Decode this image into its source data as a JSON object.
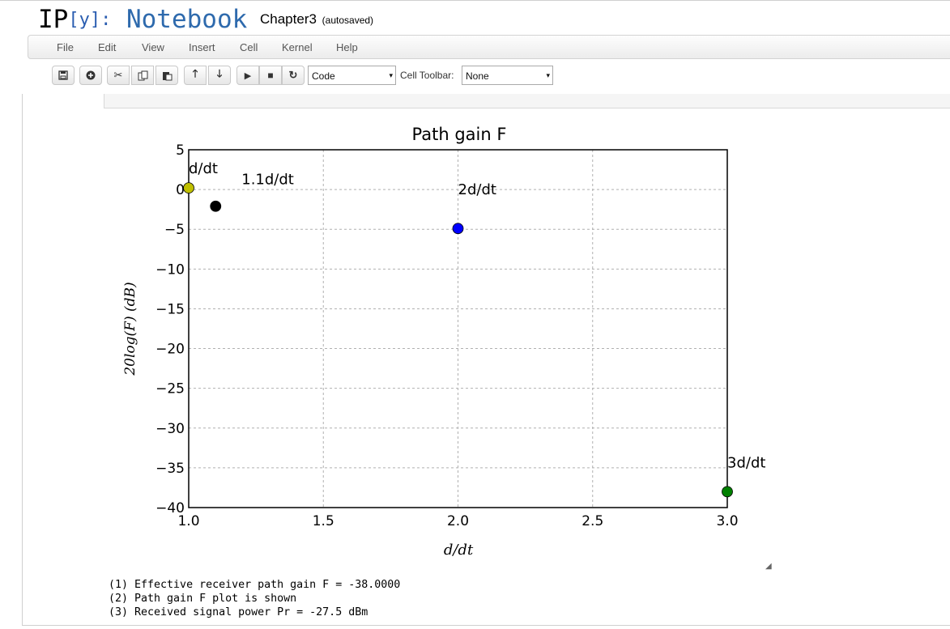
{
  "header": {
    "logo_ip": "IP",
    "logo_y": "[y]:",
    "logo_notebook": "Notebook",
    "notebook_name": "Chapter3",
    "save_status": "(autosaved)"
  },
  "menubar": {
    "items": [
      "File",
      "Edit",
      "View",
      "Insert",
      "Cell",
      "Kernel",
      "Help"
    ]
  },
  "toolbar": {
    "cell_type": "Code",
    "cell_toolbar_label": "Cell Toolbar:",
    "cell_toolbar_value": "None",
    "icons": [
      "save-icon",
      "insert-cell-icon",
      "cut-icon",
      "copy-icon",
      "paste-icon",
      "move-up-icon",
      "move-down-icon",
      "run-icon",
      "stop-icon",
      "restart-icon"
    ]
  },
  "output": {
    "lines": [
      "(1) Effective receiver path gain F = -38.0000",
      "(2) Path gain F plot is shown",
      "(3) Received signal power Pr = -27.5 dBm"
    ]
  },
  "chart_data": {
    "type": "scatter",
    "title": "Path gain F",
    "xlabel": "d/dt",
    "ylabel": "20log(F) (dB)",
    "xlim": [
      1.0,
      3.0
    ],
    "ylim": [
      -40,
      5
    ],
    "xticks": [
      "1.0",
      "1.5",
      "2.0",
      "2.5",
      "3.0"
    ],
    "yticks": [
      "5",
      "0",
      "−5",
      "−10",
      "−15",
      "−20",
      "−25",
      "−30",
      "−35",
      "−40"
    ],
    "grid": true,
    "points": [
      {
        "x": 1.0,
        "y": 0.2,
        "label": "d/dt",
        "color": "#bfbf00"
      },
      {
        "x": 1.1,
        "y": -2.1,
        "label": "1.1d/dt",
        "color": "#000000"
      },
      {
        "x": 2.0,
        "y": -4.9,
        "label": "2d/dt",
        "color": "#0000ff"
      },
      {
        "x": 3.0,
        "y": -38.0,
        "label": "3d/dt",
        "color": "#008000"
      }
    ]
  }
}
